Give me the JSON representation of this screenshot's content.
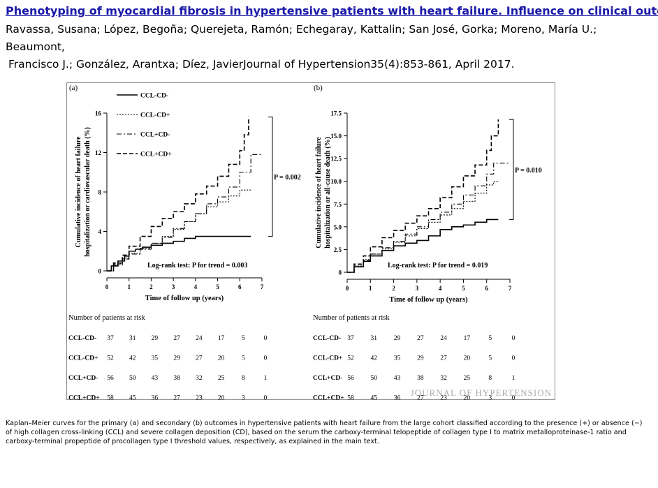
{
  "header": {
    "title": "Phenotyping of myocardial fibrosis in hypertensive patients with heart failure. Influence on clinical outcome",
    "authors_line1": "Ravassa, Susana; López, Begoña; Querejeta, Ramón; Echegaray, Kattalin; San José, Gorka; Moreno, María U.; Beaumont,",
    "authors_line2": "Francisco J.; González, Arantxa; Díez, JavierJournal of Hypertension35(4):853-861, April 2017."
  },
  "legend": [
    "CCL-CD-",
    "CCL-CD+",
    "CCL+CD-",
    "CCL+CD+"
  ],
  "chart_data": [
    {
      "type": "line",
      "panel": "(a)",
      "ylabel": "Cumulative incidence of heart failure hospitalization or cardiovascular death (%)",
      "xlabel": "Time of follow up (years)",
      "ylim": [
        0,
        16
      ],
      "yticks": [
        "0",
        "4",
        "8",
        "12",
        "16"
      ],
      "xticks": [
        "0",
        "1",
        "2",
        "3",
        "4",
        "5",
        "6",
        "7"
      ],
      "xlim": [
        0,
        7
      ],
      "pvalue": "P = 0.002",
      "logrank": "Log-rank test: P for trend = 0.003",
      "series": [
        {
          "name": "CCL-CD-",
          "x": [
            0,
            0.2,
            0.5,
            0.8,
            1.0,
            1.3,
            1.6,
            2.0,
            2.5,
            3.0,
            3.5,
            4.0,
            5.0,
            6.0,
            6.5
          ],
          "y": [
            0,
            0.5,
            1.0,
            1.5,
            2.0,
            2.2,
            2.4,
            2.6,
            2.8,
            3.0,
            3.3,
            3.5,
            3.5,
            3.5,
            3.5
          ]
        },
        {
          "name": "CCL-CD+",
          "x": [
            0,
            0.3,
            0.7,
            1.0,
            1.5,
            2.0,
            2.5,
            3.0,
            3.5,
            4.0,
            4.5,
            5.0,
            5.5,
            6.0,
            6.5
          ],
          "y": [
            0,
            0.7,
            1.3,
            1.8,
            2.3,
            2.8,
            3.5,
            4.2,
            5.0,
            5.8,
            6.5,
            7.0,
            7.6,
            8.2,
            8.2
          ]
        },
        {
          "name": "CCL+CD-",
          "x": [
            0,
            0.3,
            0.7,
            1.0,
            1.5,
            2.0,
            2.5,
            3.0,
            3.5,
            4.0,
            4.5,
            5.0,
            5.5,
            6.0,
            6.5,
            7.0
          ],
          "y": [
            0,
            0.6,
            1.2,
            1.7,
            2.2,
            2.8,
            3.4,
            4.3,
            5.0,
            5.8,
            6.8,
            7.5,
            8.5,
            10.0,
            11.8,
            11.8
          ]
        },
        {
          "name": "CCL+CD+",
          "x": [
            0,
            0.3,
            0.7,
            1.0,
            1.5,
            2.0,
            2.5,
            3.0,
            3.5,
            4.0,
            4.5,
            5.0,
            5.5,
            6.0,
            6.2,
            6.4
          ],
          "y": [
            0,
            0.8,
            1.6,
            2.5,
            3.5,
            4.5,
            5.3,
            6.0,
            6.8,
            7.8,
            8.6,
            9.6,
            10.8,
            12.2,
            13.8,
            15.6
          ]
        }
      ],
      "risk_table": {
        "title": "Number of patients at risk",
        "rows": [
          {
            "label": "CCL-CD-",
            "values": [
              "37",
              "31",
              "29",
              "27",
              "24",
              "17",
              "5",
              "0"
            ]
          },
          {
            "label": "CCL-CD+",
            "values": [
              "52",
              "42",
              "35",
              "29",
              "27",
              "20",
              "5",
              "0"
            ]
          },
          {
            "label": "CCL+CD-",
            "values": [
              "56",
              "50",
              "43",
              "38",
              "32",
              "25",
              "8",
              "1"
            ]
          },
          {
            "label": "CCL+CD+",
            "values": [
              "58",
              "45",
              "36",
              "27",
              "23",
              "20",
              "3",
              "0"
            ]
          }
        ]
      }
    },
    {
      "type": "line",
      "panel": "(b)",
      "ylabel": "Cumulative incidence of heart failure hospitalization or all-cause death (%)",
      "xlabel": "Time of follow up (years)",
      "ylim": [
        0,
        17.5
      ],
      "yticks": [
        "0",
        "2.5",
        "5.0",
        "7.5",
        "10.0",
        "12.5",
        "15.0",
        "17.5"
      ],
      "xticks": [
        "0",
        "1",
        "2",
        "3",
        "4",
        "5",
        "6",
        "7"
      ],
      "xlim": [
        0,
        7
      ],
      "pvalue": "P = 0.010",
      "logrank": "Log-rank test: P for trend = 0.019",
      "series": [
        {
          "name": "CCL-CD-",
          "x": [
            0,
            0.3,
            0.7,
            1.0,
            1.5,
            2.0,
            2.5,
            3.0,
            3.5,
            4.0,
            4.5,
            5.0,
            5.5,
            6.0,
            6.5
          ],
          "y": [
            0,
            0.6,
            1.2,
            1.8,
            2.4,
            2.9,
            3.2,
            3.5,
            4.0,
            4.7,
            5.0,
            5.2,
            5.5,
            5.8,
            5.8
          ]
        },
        {
          "name": "CCL-CD+",
          "x": [
            0,
            0.3,
            0.7,
            1.0,
            1.5,
            2.0,
            2.5,
            3.0,
            3.5,
            4.0,
            4.5,
            5.0,
            5.5,
            6.0,
            6.3,
            6.5
          ],
          "y": [
            0,
            0.7,
            1.4,
            2.0,
            2.6,
            3.3,
            4.0,
            4.8,
            5.5,
            6.3,
            7.0,
            7.8,
            8.7,
            9.6,
            10.0,
            10.0
          ]
        },
        {
          "name": "CCL+CD-",
          "x": [
            0,
            0.3,
            0.7,
            1.0,
            1.5,
            2.0,
            2.5,
            3.0,
            3.5,
            4.0,
            4.5,
            5.0,
            5.5,
            6.0,
            6.3,
            7.0
          ],
          "y": [
            0,
            0.6,
            1.3,
            2.0,
            2.7,
            3.4,
            4.2,
            5.0,
            5.8,
            6.6,
            7.5,
            8.5,
            9.5,
            10.8,
            12.0,
            12.0
          ]
        },
        {
          "name": "CCL+CD+",
          "x": [
            0,
            0.3,
            0.7,
            1.0,
            1.5,
            2.0,
            2.5,
            3.0,
            3.5,
            4.0,
            4.5,
            5.0,
            5.5,
            6.0,
            6.2,
            6.5
          ],
          "y": [
            0,
            0.9,
            1.8,
            2.8,
            3.8,
            4.6,
            5.4,
            6.2,
            7.0,
            8.2,
            9.4,
            10.6,
            11.8,
            13.4,
            15.0,
            16.8
          ]
        }
      ],
      "risk_table": {
        "title": "Number of patients at risk",
        "rows": [
          {
            "label": "CCL-CD-",
            "values": [
              "37",
              "31",
              "29",
              "27",
              "24",
              "17",
              "5",
              "0"
            ]
          },
          {
            "label": "CCL-CD+",
            "values": [
              "52",
              "42",
              "35",
              "29",
              "27",
              "20",
              "5",
              "0"
            ]
          },
          {
            "label": "CCL+CD-",
            "values": [
              "56",
              "50",
              "43",
              "38",
              "32",
              "25",
              "8",
              "1"
            ]
          },
          {
            "label": "CCL+CD+",
            "values": [
              "58",
              "45",
              "36",
              "27",
              "23",
              "20",
              "3",
              "0"
            ]
          }
        ]
      }
    }
  ],
  "watermark": "JOURNAL OF HYPERTENSION",
  "caption": "Kaplan–Meier curves for the primary (a) and secondary (b) outcomes in hypertensive patients with heart failure from the large cohort classified according to the presence (+) or absence (−) of high collagen cross-linking (CCL) and severe collagen deposition (CD), based on the serum the carboxy-terminal telopeptide of collagen type I to matrix metalloproteinase-1 ratio and carboxy-terminal propeptide of procollagen type I threshold values, respectively, as explained in the main text."
}
